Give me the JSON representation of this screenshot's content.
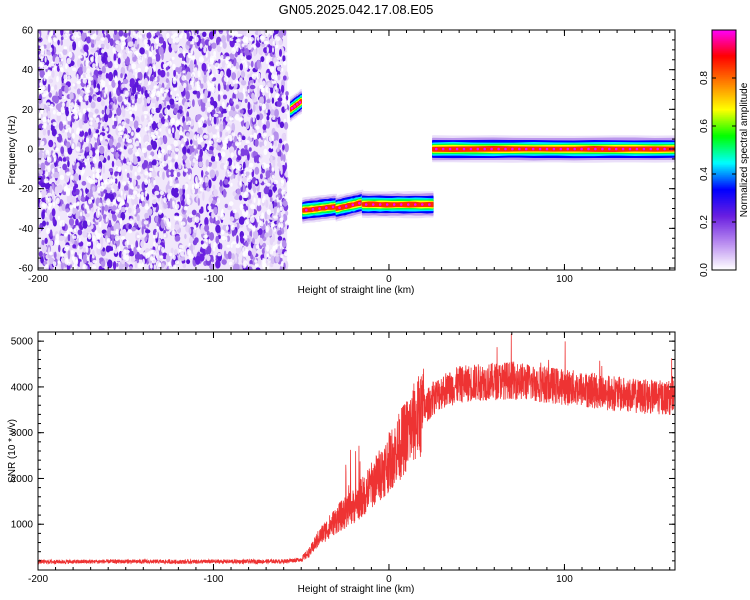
{
  "figure": {
    "title": "GN05.2025.042.17.08.E05"
  },
  "colorbar": {
    "label": "Normalized spectral amplitude",
    "ticks": [
      0.0,
      0.2,
      0.4,
      0.6,
      0.8
    ],
    "tick_labels": [
      "0.0",
      "0.2",
      "0.4",
      "0.6",
      "0.8"
    ],
    "range": [
      0,
      1
    ],
    "colors": [
      "#ffffff",
      "#b98cf0",
      "#6a1fe0",
      "#0000ff",
      "#00ffff",
      "#00ff00",
      "#ffff00",
      "#ff8000",
      "#ff0000",
      "#ff00ff"
    ]
  },
  "chart_data": [
    {
      "type": "heatmap",
      "xlabel": "Height of straight line (km)",
      "ylabel": "Frequency (Hz)",
      "xlim": [
        -200,
        163
      ],
      "ylim": [
        -61,
        60
      ],
      "xticks": [
        -200,
        -100,
        0,
        100
      ],
      "xtick_labels": [
        "-200",
        "-100",
        "0",
        "100"
      ],
      "yticks": [
        -60,
        -40,
        -20,
        0,
        20,
        40,
        60
      ],
      "ytick_labels": [
        "-60",
        "-40",
        "-20",
        "0",
        "20",
        "40",
        "60"
      ],
      "noise_region": {
        "x": [
          -200,
          -58
        ],
        "y": [
          -61,
          60
        ],
        "level": 0.1
      },
      "tracks": [
        {
          "x": [
            -56,
            -50
          ],
          "y": [
            20,
            24
          ],
          "level": 0.6
        },
        {
          "x": [
            -49,
            -30
          ],
          "y": [
            -31,
            -29
          ],
          "level": 0.8
        },
        {
          "x": [
            -30,
            -15
          ],
          "y": [
            -30,
            -27
          ],
          "level": 0.75
        },
        {
          "x": [
            -15,
            25
          ],
          "y": [
            -28,
            -28
          ],
          "level": 0.85
        },
        {
          "x": [
            25,
            163
          ],
          "y": [
            0,
            0
          ],
          "level": 0.9
        }
      ]
    },
    {
      "type": "line",
      "xlabel": "Height of straight line (km)",
      "ylabel": "SNR (10 * v/v)",
      "xlim": [
        -200,
        163
      ],
      "ylim": [
        0,
        5200
      ],
      "xticks": [
        -200,
        -100,
        0,
        100
      ],
      "xtick_labels": [
        "-200",
        "-100",
        "0",
        "100"
      ],
      "yticks": [
        1000,
        2000,
        3000,
        4000,
        5000
      ],
      "ytick_labels": [
        "1000",
        "2000",
        "3000",
        "4000",
        "5000"
      ],
      "series": [
        {
          "color": "#ee3333",
          "x": [
            -200,
            -180,
            -160,
            -140,
            -120,
            -100,
            -80,
            -60,
            -50,
            -45,
            -40,
            -35,
            -30,
            -25,
            -20,
            -15,
            -10,
            -5,
            0,
            5,
            10,
            15,
            20,
            25,
            30,
            40,
            50,
            60,
            70,
            80,
            90,
            100,
            110,
            120,
            130,
            140,
            150,
            163
          ],
          "y": [
            180,
            180,
            185,
            185,
            180,
            185,
            185,
            190,
            230,
            400,
            700,
            900,
            1100,
            1250,
            1400,
            1600,
            1850,
            2100,
            2350,
            2650,
            2950,
            3250,
            3500,
            3750,
            3900,
            4050,
            4100,
            4120,
            4150,
            4100,
            4050,
            4000,
            3950,
            3900,
            3850,
            3800,
            3780,
            3760
          ]
        }
      ]
    }
  ]
}
